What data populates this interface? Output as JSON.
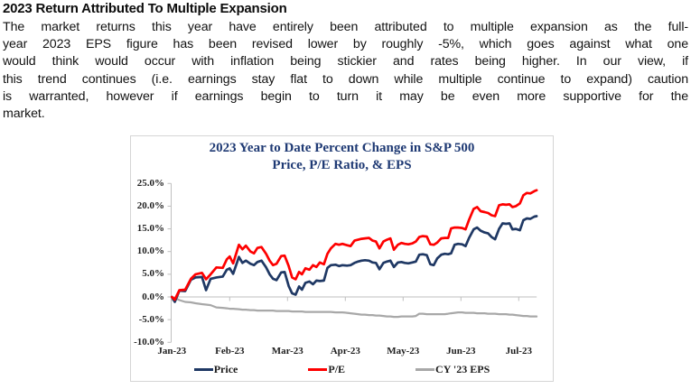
{
  "page": {
    "heading": "2023 Return Attributed To Multiple Expansion",
    "paragraph_lines": [
      "The market returns this year have entirely been attributed to multiple expansion as the full-",
      "year 2023 EPS figure has been revised lower by roughly -5%, which goes against what one",
      "would think would occur with inflation being stickier and rates being higher. In our view, if",
      "this trend continues (i.e. earnings stay flat to down while multiple continue to expand) caution",
      "is warranted, however if earnings begin to turn it may be even more supportive for the",
      "market."
    ]
  },
  "chart": {
    "title_line1": "2023 Year to Date Percent Change in S&P 500",
    "title_line2": "Price, P/E Ratio, & EPS",
    "title_color": "#1f3a74",
    "border_color": "#d5d5d5",
    "axis_color": "#bfbfbf"
  },
  "chart_data": {
    "type": "line",
    "title": "2023 Year to Date Percent Change in S&P 500 Price, P/E Ratio, & EPS",
    "xlabel": "",
    "ylabel": "",
    "ylim": [
      -10,
      25
    ],
    "y_axis": {
      "labels": [
        "25.0%",
        "20.0%",
        "15.0%",
        "10.0%",
        "5.0%",
        "0.0%",
        "-5.0%",
        "-10.0%"
      ],
      "step": 5
    },
    "x_axis": {
      "labels": [
        "Jan-23",
        "Feb-23",
        "Mar-23",
        "Apr-23",
        "May-23",
        "Jun-23",
        "Jul-23"
      ],
      "unit": "months after Jan-23 start"
    },
    "grid": false,
    "legend_position": "bottom",
    "x": [
      0,
      0.05,
      0.13,
      0.23,
      0.33,
      0.41,
      0.52,
      0.59,
      0.67,
      0.77,
      0.88,
      0.95,
      1.0,
      1.06,
      1.16,
      1.22,
      1.28,
      1.36,
      1.42,
      1.48,
      1.55,
      1.63,
      1.69,
      1.75,
      1.81,
      1.89,
      1.95,
      2.02,
      2.08,
      2.14,
      2.2,
      2.25,
      2.31,
      2.38,
      2.44,
      2.5,
      2.56,
      2.63,
      2.69,
      2.75,
      2.83,
      2.89,
      2.95,
      3.03,
      3.09,
      3.16,
      3.22,
      3.28,
      3.34,
      3.41,
      3.47,
      3.53,
      3.59,
      3.66,
      3.72,
      3.78,
      3.84,
      3.91,
      3.97,
      4.03,
      4.09,
      4.16,
      4.22,
      4.28,
      4.34,
      4.41,
      4.47,
      4.53,
      4.59,
      4.66,
      4.72,
      4.78,
      4.83,
      4.89,
      4.95,
      5.02,
      5.08,
      5.14,
      5.22,
      5.28,
      5.34,
      5.41,
      5.47,
      5.53,
      5.59,
      5.66,
      5.72,
      5.78,
      5.84,
      5.89,
      5.95,
      6.02,
      6.08,
      6.14,
      6.2,
      6.27,
      6.31
    ],
    "series": [
      {
        "name": "Price",
        "color": "#1f3864",
        "values": [
          0.0,
          -1.1,
          1.4,
          1.3,
          3.8,
          4.3,
          4.4,
          1.5,
          4.0,
          4.3,
          4.5,
          6.0,
          6.3,
          5.1,
          8.8,
          7.5,
          8.0,
          7.3,
          7.0,
          7.7,
          8.0,
          6.5,
          5.0,
          4.0,
          3.7,
          5.4,
          5.5,
          2.4,
          0.8,
          0.5,
          2.3,
          1.6,
          3.1,
          3.4,
          2.8,
          3.6,
          3.5,
          3.6,
          6.4,
          7.0,
          7.1,
          6.8,
          7.0,
          6.9,
          7.0,
          7.5,
          7.8,
          8.0,
          8.1,
          8.0,
          7.6,
          7.5,
          6.1,
          7.5,
          7.8,
          8.0,
          6.6,
          7.6,
          7.7,
          7.5,
          7.4,
          7.6,
          7.8,
          9.3,
          9.4,
          9.2,
          7.2,
          7.0,
          8.5,
          9.3,
          9.5,
          9.4,
          9.6,
          11.5,
          11.7,
          11.6,
          11.2,
          13.0,
          14.9,
          15.3,
          14.6,
          14.2,
          14.0,
          13.2,
          12.7,
          15.0,
          16.2,
          16.1,
          16.2,
          14.9,
          15.0,
          14.7,
          16.9,
          17.3,
          17.2,
          17.7,
          17.8
        ]
      },
      {
        "name": "P/E",
        "color": "#fe0000",
        "values": [
          0.0,
          -0.6,
          1.5,
          1.6,
          4.0,
          5.0,
          5.3,
          3.9,
          5.0,
          6.5,
          6.4,
          8.3,
          8.9,
          7.4,
          11.5,
          10.5,
          11.3,
          10.0,
          9.6,
          10.8,
          11.0,
          9.5,
          8.0,
          7.0,
          7.3,
          9.0,
          9.1,
          6.8,
          4.3,
          3.9,
          5.5,
          5.0,
          6.3,
          6.0,
          7.0,
          6.6,
          7.6,
          7.2,
          9.5,
          10.7,
          11.7,
          11.5,
          11.7,
          11.4,
          11.2,
          12.4,
          12.6,
          12.8,
          12.9,
          13.0,
          12.4,
          12.2,
          10.7,
          12.2,
          12.6,
          12.9,
          10.4,
          11.5,
          11.9,
          11.7,
          11.6,
          11.8,
          12.2,
          13.2,
          13.4,
          13.3,
          11.6,
          11.5,
          12.0,
          12.9,
          13.0,
          13.0,
          15.1,
          15.3,
          15.3,
          15.2,
          14.9,
          17.0,
          19.4,
          19.8,
          18.9,
          18.7,
          18.5,
          18.0,
          17.8,
          20.2,
          20.4,
          20.3,
          20.4,
          19.8,
          20.0,
          20.6,
          22.4,
          22.9,
          22.8,
          23.3,
          23.5
        ]
      },
      {
        "name": "CY '23 EPS",
        "color": "#a8a8a8",
        "values": [
          -0.1,
          -0.2,
          -0.7,
          -1.1,
          -1.2,
          -1.4,
          -1.6,
          -1.7,
          -1.8,
          -2.3,
          -2.4,
          -2.5,
          -2.6,
          -2.6,
          -2.7,
          -2.8,
          -2.8,
          -2.9,
          -2.9,
          -3.0,
          -3.0,
          -3.0,
          -3.0,
          -3.0,
          -3.1,
          -3.1,
          -3.1,
          -3.1,
          -3.2,
          -3.2,
          -3.2,
          -3.2,
          -3.3,
          -3.3,
          -3.3,
          -3.3,
          -3.3,
          -3.3,
          -3.3,
          -3.3,
          -3.4,
          -3.4,
          -3.4,
          -3.5,
          -3.6,
          -3.7,
          -3.8,
          -3.9,
          -3.9,
          -4.0,
          -4.0,
          -4.1,
          -4.1,
          -4.2,
          -4.3,
          -4.3,
          -4.4,
          -4.4,
          -4.3,
          -4.3,
          -4.3,
          -4.3,
          -4.2,
          -3.7,
          -3.7,
          -3.8,
          -3.8,
          -3.8,
          -3.8,
          -3.8,
          -3.8,
          -3.7,
          -3.6,
          -3.5,
          -3.4,
          -3.4,
          -3.5,
          -3.5,
          -3.5,
          -3.6,
          -3.6,
          -3.6,
          -3.7,
          -3.7,
          -3.7,
          -3.8,
          -3.8,
          -3.8,
          -3.9,
          -3.9,
          -4.0,
          -4.1,
          -4.2,
          -4.2,
          -4.3,
          -4.3,
          -4.3
        ]
      }
    ]
  }
}
